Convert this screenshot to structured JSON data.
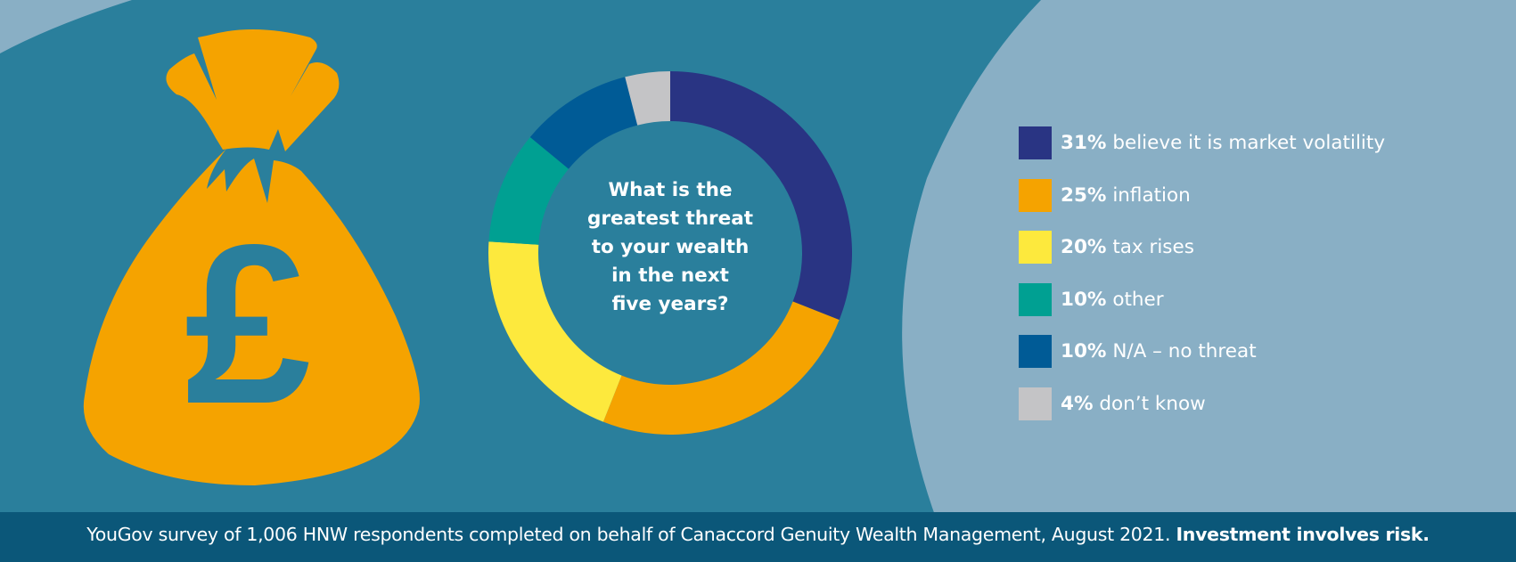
{
  "colors": {
    "background": "#2a7f9c",
    "light_panel": "#89afc5",
    "bag": "#f5a300",
    "footer": "#0b5779"
  },
  "icon": "money-bag-pound-icon",
  "chart_data": {
    "type": "pie",
    "style": "donut",
    "title": "What is the greatest threat to your wealth in the next five years?",
    "title_lines": [
      "What is the",
      "greatest threat",
      "to your wealth",
      "in the next",
      "five years?"
    ],
    "unit": "%",
    "slices": [
      {
        "label": "believe it is market volatility",
        "value": 31,
        "display": "31%",
        "color": "#293483"
      },
      {
        "label": "inflation",
        "value": 25,
        "display": "25%",
        "color": "#f5a300"
      },
      {
        "label": "tax rises",
        "value": 20,
        "display": "20%",
        "color": "#fde93d"
      },
      {
        "label": "other",
        "value": 10,
        "display": "10%",
        "color": "#00a092"
      },
      {
        "label": "N/A – no threat",
        "value": 10,
        "display": "10%",
        "color": "#005b96"
      },
      {
        "label": "don’t know",
        "value": 4,
        "display": "4%",
        "color": "#c4c4c6"
      }
    ],
    "legend_position": "right",
    "grid": false
  },
  "footer": {
    "text": "YouGov survey of 1,006 HNW respondents completed on behalf of Canaccord Genuity Wealth Management, August 2021.",
    "emphasis": "Investment involves risk."
  }
}
